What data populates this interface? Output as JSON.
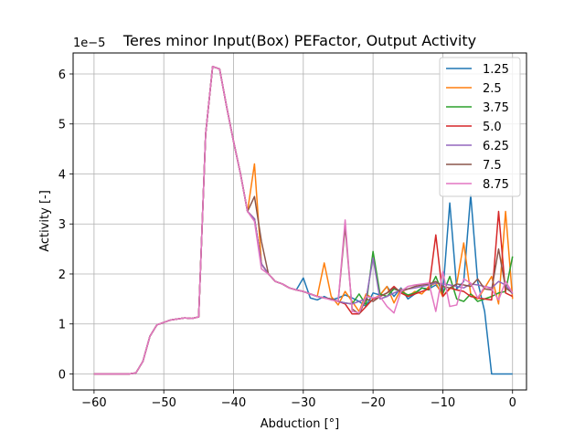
{
  "chart_data": {
    "type": "line",
    "title": "Teres minor Input(Box) PEFactor, Output Activity",
    "xlabel": "Abduction [°]",
    "ylabel": "Activity [-]",
    "y_offset_label": "1e−5",
    "xlim": [
      -63,
      2
    ],
    "ylim": [
      -0.32,
      6.42
    ],
    "x_ticks": [
      -60,
      -50,
      -40,
      -30,
      -20,
      -10,
      0
    ],
    "x_tick_labels": [
      "−60",
      "−50",
      "−40",
      "−30",
      "−20",
      "−10",
      "0"
    ],
    "y_ticks": [
      0,
      1,
      2,
      3,
      4,
      5,
      6
    ],
    "y_tick_labels": [
      "0",
      "1",
      "2",
      "3",
      "4",
      "5",
      "6"
    ],
    "grid": true,
    "legend_position": "top-right",
    "x": [
      -60,
      -59,
      -58,
      -57,
      -56,
      -55,
      -54,
      -53,
      -52,
      -51,
      -50,
      -49,
      -48,
      -47,
      -46,
      -45,
      -44,
      -43,
      -42,
      -41,
      -40,
      -39,
      -38,
      -37,
      -36,
      -35,
      -34,
      -33,
      -32,
      -31,
      -30,
      -29,
      -28,
      -27,
      -26,
      -25,
      -24,
      -23,
      -22,
      -21,
      -20,
      -19,
      -18,
      -17,
      -16,
      -15,
      -14,
      -13,
      -12,
      -11,
      -10,
      -9,
      -8,
      -7,
      -6,
      -5,
      -4,
      -3,
      -2,
      -1,
      0
    ],
    "series": [
      {
        "name": "1.25",
        "color": "#1f77b4",
        "values": [
          0,
          0,
          0,
          0,
          0,
          0,
          0.02,
          0.25,
          0.75,
          0.98,
          1.03,
          1.08,
          1.1,
          1.12,
          1.11,
          1.14,
          4.8,
          6.15,
          6.1,
          5.35,
          4.65,
          4.0,
          3.25,
          3.1,
          2.2,
          2.0,
          1.85,
          1.8,
          1.72,
          1.68,
          1.92,
          1.52,
          1.48,
          1.55,
          1.48,
          1.52,
          1.58,
          1.52,
          1.45,
          1.35,
          1.62,
          1.58,
          1.75,
          1.55,
          1.72,
          1.5,
          1.6,
          1.72,
          1.7,
          1.78,
          1.62,
          3.42,
          1.7,
          1.85,
          3.58,
          1.85,
          1.25,
          0,
          0,
          0,
          0
        ]
      },
      {
        "name": "2.5",
        "color": "#ff7f0e",
        "values": [
          0,
          0,
          0,
          0,
          0,
          0,
          0.02,
          0.25,
          0.75,
          0.98,
          1.03,
          1.08,
          1.1,
          1.12,
          1.11,
          1.14,
          4.8,
          6.15,
          6.1,
          5.35,
          4.65,
          4.0,
          3.25,
          4.2,
          2.2,
          2.0,
          1.85,
          1.8,
          1.72,
          1.68,
          1.65,
          1.6,
          1.55,
          2.22,
          1.55,
          1.38,
          1.65,
          1.45,
          1.25,
          1.6,
          1.5,
          1.58,
          1.75,
          1.42,
          1.7,
          1.55,
          1.65,
          1.6,
          1.75,
          1.82,
          1.55,
          1.7,
          1.8,
          2.62,
          1.6,
          1.5,
          1.72,
          1.95,
          1.4,
          3.25,
          1.5
        ]
      },
      {
        "name": "3.75",
        "color": "#2ca02c",
        "values": [
          0,
          0,
          0,
          0,
          0,
          0,
          0.02,
          0.25,
          0.75,
          0.98,
          1.03,
          1.08,
          1.1,
          1.12,
          1.11,
          1.14,
          4.8,
          6.15,
          6.1,
          5.35,
          4.65,
          4.0,
          3.25,
          3.1,
          2.2,
          2.0,
          1.85,
          1.8,
          1.72,
          1.68,
          1.65,
          1.6,
          1.55,
          1.52,
          1.5,
          1.45,
          1.42,
          1.4,
          1.6,
          1.38,
          2.45,
          1.6,
          1.55,
          1.7,
          1.65,
          1.58,
          1.62,
          1.72,
          1.68,
          1.95,
          1.6,
          1.95,
          1.5,
          1.45,
          1.6,
          1.45,
          1.5,
          1.55,
          1.62,
          1.65,
          2.35
        ]
      },
      {
        "name": "5.0",
        "color": "#d62728",
        "values": [
          0,
          0,
          0,
          0,
          0,
          0,
          0.02,
          0.25,
          0.75,
          0.98,
          1.03,
          1.08,
          1.1,
          1.12,
          1.11,
          1.14,
          4.8,
          6.15,
          6.1,
          5.35,
          4.65,
          4.0,
          3.25,
          3.1,
          2.2,
          2.0,
          1.85,
          1.8,
          1.72,
          1.68,
          1.65,
          1.6,
          1.55,
          1.52,
          1.5,
          1.45,
          1.4,
          1.2,
          1.2,
          1.35,
          1.5,
          1.55,
          1.62,
          1.75,
          1.62,
          1.55,
          1.6,
          1.65,
          1.7,
          2.78,
          1.55,
          1.72,
          1.68,
          1.65,
          1.55,
          1.52,
          1.5,
          1.48,
          3.25,
          1.62,
          1.55
        ]
      },
      {
        "name": "6.25",
        "color": "#9467bd",
        "values": [
          0,
          0,
          0,
          0,
          0,
          0,
          0.02,
          0.25,
          0.75,
          0.98,
          1.03,
          1.08,
          1.1,
          1.12,
          1.11,
          1.14,
          4.8,
          6.15,
          6.1,
          5.35,
          4.65,
          4.0,
          3.25,
          3.1,
          2.2,
          2.0,
          1.85,
          1.8,
          1.72,
          1.68,
          1.65,
          1.6,
          1.55,
          1.52,
          1.5,
          1.45,
          1.42,
          1.4,
          1.45,
          1.5,
          2.32,
          1.5,
          1.55,
          1.62,
          1.68,
          1.7,
          1.72,
          1.75,
          1.78,
          1.82,
          1.8,
          1.78,
          1.75,
          1.72,
          1.8,
          1.78,
          1.75,
          1.72,
          1.85,
          1.78,
          1.6
        ]
      },
      {
        "name": "7.5",
        "color": "#8c564b",
        "values": [
          0,
          0,
          0,
          0,
          0,
          0,
          0.02,
          0.25,
          0.75,
          0.98,
          1.03,
          1.08,
          1.1,
          1.12,
          1.11,
          1.14,
          4.8,
          6.15,
          6.1,
          5.35,
          4.65,
          4.0,
          3.25,
          3.55,
          2.65,
          2.0,
          1.85,
          1.8,
          1.72,
          1.68,
          1.65,
          1.6,
          1.55,
          1.52,
          1.5,
          1.45,
          2.95,
          1.3,
          1.2,
          1.5,
          1.45,
          1.55,
          1.62,
          1.72,
          1.65,
          1.7,
          1.75,
          1.78,
          1.8,
          1.85,
          1.75,
          1.72,
          1.8,
          1.78,
          1.75,
          1.9,
          1.7,
          1.68,
          2.5,
          1.72,
          1.62
        ]
      },
      {
        "name": "8.75",
        "color": "#e377c2",
        "values": [
          0,
          0,
          0,
          0,
          0,
          0,
          0.02,
          0.25,
          0.75,
          0.98,
          1.03,
          1.08,
          1.1,
          1.12,
          1.11,
          1.14,
          4.8,
          6.15,
          6.1,
          5.35,
          4.65,
          4.0,
          3.25,
          3.05,
          2.1,
          2.0,
          1.85,
          1.8,
          1.72,
          1.68,
          1.65,
          1.6,
          1.55,
          1.52,
          1.48,
          1.45,
          3.08,
          1.25,
          1.22,
          1.55,
          1.52,
          1.55,
          1.35,
          1.22,
          1.65,
          1.75,
          1.78,
          1.8,
          1.82,
          1.25,
          2.05,
          1.35,
          1.38,
          1.9,
          1.82,
          1.52,
          1.75,
          1.7,
          1.48,
          1.85,
          1.62
        ]
      }
    ]
  }
}
